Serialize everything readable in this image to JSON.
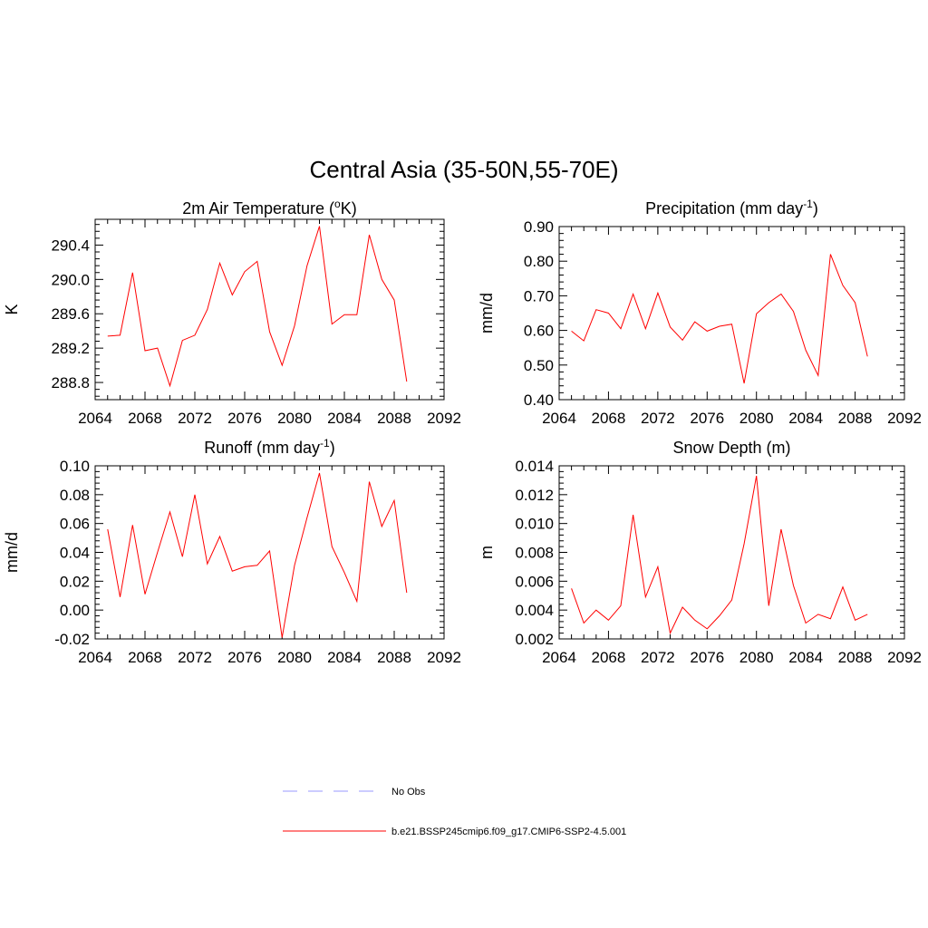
{
  "title": "Central Asia (35-50N,55-70E)",
  "legend": [
    {
      "label": "No Obs",
      "color": "#9999ff",
      "dash": true
    },
    {
      "label": "b.e21.BSSP245cmip6.f09_g17.CMIP6-SSP2-4.5.001",
      "color": "#ff0000",
      "dash": false
    }
  ],
  "chart_data": [
    {
      "type": "line",
      "title": "2m Air Temperature (",
      "title_sup": "o",
      "title_after": "K)",
      "ylabel": "K",
      "xlim": [
        2064,
        2092
      ],
      "ylim": [
        288.6,
        290.7
      ],
      "xticks": [
        "2064",
        "2068",
        "2072",
        "2076",
        "2080",
        "2084",
        "2088",
        "2092"
      ],
      "yticks": [
        288.8,
        289.2,
        289.6,
        290.0,
        290.4
      ],
      "ytick_labels": [
        "288.8",
        "289.2",
        "289.6",
        "290.0",
        "290.4"
      ],
      "x": [
        2065,
        2066,
        2067,
        2068,
        2069,
        2070,
        2071,
        2072,
        2073,
        2074,
        2075,
        2076,
        2077,
        2078,
        2079,
        2080,
        2081,
        2082,
        2083,
        2084,
        2085,
        2086,
        2087,
        2088,
        2089
      ],
      "series": [
        {
          "values": [
            289.34,
            289.35,
            290.08,
            289.17,
            289.2,
            288.76,
            289.29,
            289.35,
            289.65,
            290.19,
            289.82,
            290.09,
            290.21,
            289.39,
            289.0,
            289.46,
            290.16,
            290.62,
            289.48,
            289.59,
            289.59,
            290.52,
            290.0,
            289.76,
            288.81
          ]
        }
      ]
    },
    {
      "type": "line",
      "title": "Precipitation (mm day",
      "title_sup": "-1",
      "title_after": ")",
      "ylabel": "mm/d",
      "xlim": [
        2064,
        2092
      ],
      "ylim": [
        0.4,
        0.9
      ],
      "xticks": [
        "2064",
        "2068",
        "2072",
        "2076",
        "2080",
        "2084",
        "2088",
        "2092"
      ],
      "yticks": [
        0.4,
        0.5,
        0.6,
        0.7,
        0.8,
        0.9
      ],
      "ytick_labels": [
        "0.40",
        "0.50",
        "0.60",
        "0.70",
        "0.80",
        "0.90"
      ],
      "x": [
        2065,
        2066,
        2067,
        2068,
        2069,
        2070,
        2071,
        2072,
        2073,
        2074,
        2075,
        2076,
        2077,
        2078,
        2079,
        2080,
        2081,
        2082,
        2083,
        2084,
        2085,
        2086,
        2087,
        2088,
        2089
      ],
      "series": [
        {
          "values": [
            0.598,
            0.57,
            0.66,
            0.65,
            0.605,
            0.705,
            0.605,
            0.708,
            0.61,
            0.572,
            0.625,
            0.598,
            0.612,
            0.618,
            0.447,
            0.648,
            0.68,
            0.705,
            0.655,
            0.543,
            0.47,
            0.82,
            0.73,
            0.68,
            0.525
          ]
        }
      ]
    },
    {
      "type": "line",
      "title": "Runoff (mm day",
      "title_sup": "-1",
      "title_after": ")",
      "ylabel": "mm/d",
      "xlim": [
        2064,
        2092
      ],
      "ylim": [
        -0.02,
        0.1
      ],
      "xticks": [
        "2064",
        "2068",
        "2072",
        "2076",
        "2080",
        "2084",
        "2088",
        "2092"
      ],
      "yticks": [
        -0.02,
        0.0,
        0.02,
        0.04,
        0.06,
        0.08,
        0.1
      ],
      "ytick_labels": [
        "-0.02",
        "0.00",
        "0.02",
        "0.04",
        "0.06",
        "0.08",
        "0.10"
      ],
      "x": [
        2065,
        2066,
        2067,
        2068,
        2069,
        2070,
        2071,
        2072,
        2073,
        2074,
        2075,
        2076,
        2077,
        2078,
        2079,
        2080,
        2081,
        2082,
        2083,
        2084,
        2085,
        2086,
        2087,
        2088,
        2089
      ],
      "series": [
        {
          "values": [
            0.056,
            0.009,
            0.059,
            0.011,
            0.04,
            0.068,
            0.037,
            0.08,
            0.032,
            0.051,
            0.027,
            0.03,
            0.031,
            0.041,
            -0.019,
            0.031,
            0.064,
            0.095,
            0.044,
            0.026,
            0.006,
            0.089,
            0.058,
            0.076,
            0.012
          ]
        }
      ]
    },
    {
      "type": "line",
      "title": "Snow Depth (m)",
      "title_sup": "",
      "title_after": "",
      "ylabel": "m",
      "xlim": [
        2064,
        2092
      ],
      "ylim": [
        0.002,
        0.014
      ],
      "xticks": [
        "2064",
        "2068",
        "2072",
        "2076",
        "2080",
        "2084",
        "2088",
        "2092"
      ],
      "yticks": [
        0.002,
        0.004,
        0.006,
        0.008,
        0.01,
        0.012,
        0.014
      ],
      "ytick_labels": [
        "0.002",
        "0.004",
        "0.006",
        "0.008",
        "0.010",
        "0.012",
        "0.014"
      ],
      "x": [
        2065,
        2066,
        2067,
        2068,
        2069,
        2070,
        2071,
        2072,
        2073,
        2074,
        2075,
        2076,
        2077,
        2078,
        2079,
        2080,
        2081,
        2082,
        2083,
        2084,
        2085,
        2086,
        2087,
        2088,
        2089
      ],
      "series": [
        {
          "values": [
            0.0055,
            0.0031,
            0.004,
            0.0033,
            0.0043,
            0.0106,
            0.0049,
            0.007,
            0.0024,
            0.0042,
            0.0033,
            0.0027,
            0.0036,
            0.0047,
            0.0086,
            0.0133,
            0.0043,
            0.0096,
            0.0057,
            0.0031,
            0.0037,
            0.0034,
            0.0056,
            0.0033,
            0.0037
          ]
        }
      ]
    }
  ]
}
